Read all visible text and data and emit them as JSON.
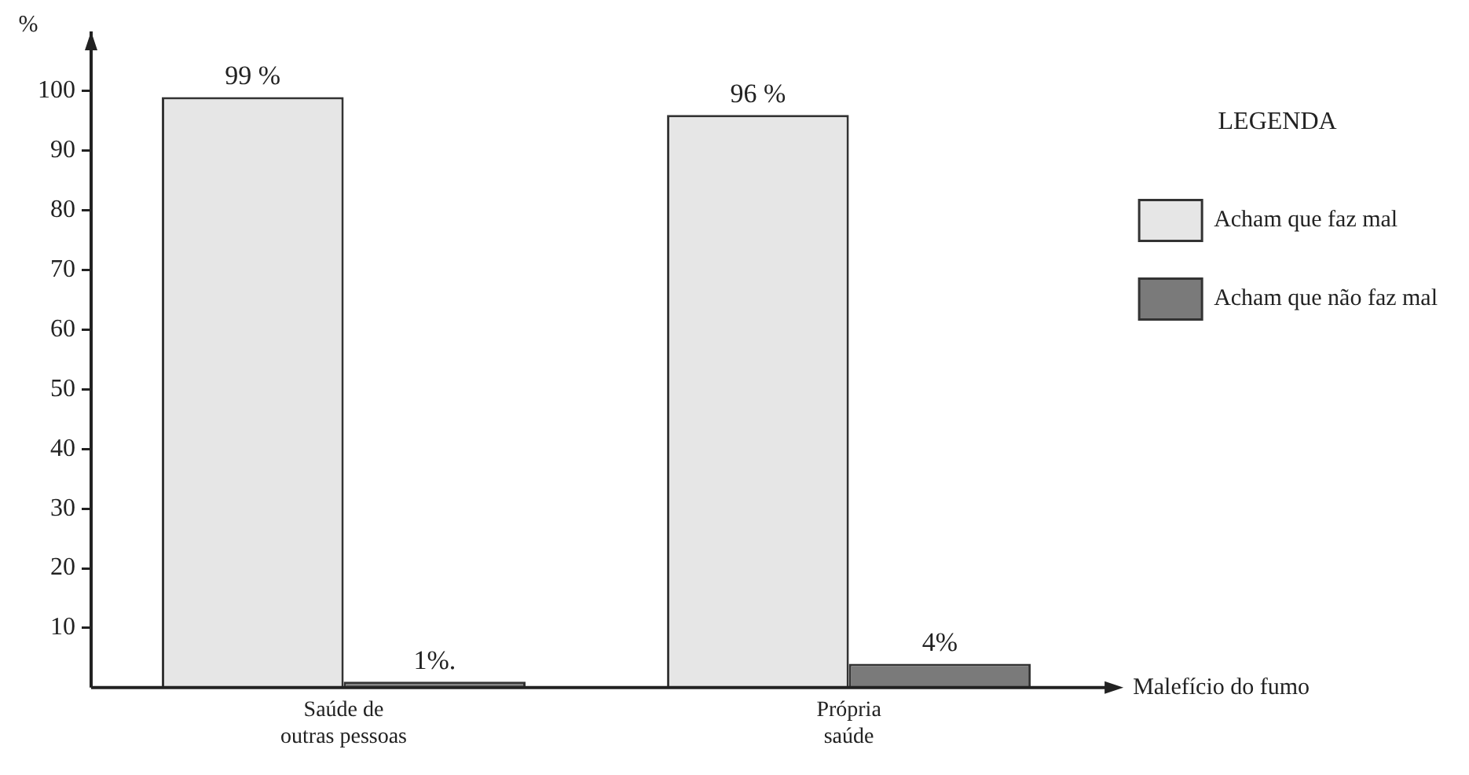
{
  "chart_data": {
    "type": "bar",
    "ylabel": "%",
    "xlabel": "Malefício do fumo",
    "legend_title": "LEGENDA",
    "legend": "right",
    "categories": [
      "Saúde de outras pessoas",
      "Própria saúde"
    ],
    "series": [
      {
        "name": "Acham que faz mal",
        "color": "#e6e6e6",
        "values": [
          99,
          96
        ],
        "value_labels": [
          "99 %",
          "96 %"
        ]
      },
      {
        "name": "Acham que não faz mal",
        "color": "#7a7a7a",
        "values": [
          1,
          4
        ],
        "value_labels": [
          "1%.",
          "4%"
        ]
      }
    ],
    "ylim": [
      0,
      110
    ],
    "yticks": [
      10,
      20,
      30,
      40,
      50,
      60,
      70,
      80,
      90,
      100
    ],
    "grid": false
  }
}
